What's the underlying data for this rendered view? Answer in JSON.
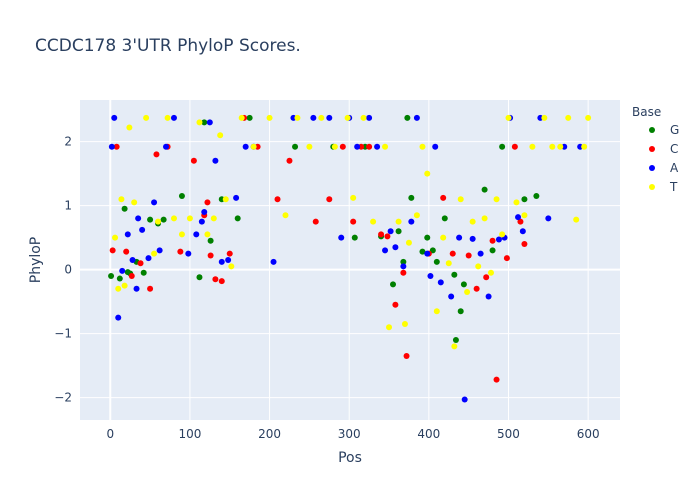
{
  "chart_data": {
    "type": "scatter",
    "title": "CCDC178 3'UTR PhyloP Scores.",
    "xlabel": "Pos",
    "ylabel": "PhyloP",
    "xlim": [
      -38,
      640
    ],
    "ylim": [
      -2.35,
      2.65
    ],
    "x_ticks": [
      0,
      100,
      200,
      300,
      400,
      500,
      600
    ],
    "y_ticks": [
      -2,
      -1,
      0,
      1,
      2
    ],
    "grid": true,
    "legend_title": "Base",
    "legend_position": "right",
    "series": [
      {
        "name": "G",
        "color": "#008000",
        "x": [
          1,
          12,
          18,
          22,
          25,
          33,
          42,
          50,
          60,
          67,
          90,
          112,
          118,
          126,
          140,
          160,
          175,
          232,
          280,
          307,
          320,
          340,
          355,
          362,
          368,
          373,
          378,
          392,
          398,
          405,
          410,
          420,
          432,
          434,
          440,
          444,
          470,
          480,
          492,
          520,
          535
        ],
        "y": [
          -0.1,
          -0.14,
          0.95,
          -0.04,
          -0.06,
          0.12,
          -0.05,
          0.78,
          0.72,
          0.78,
          1.15,
          -0.12,
          2.3,
          0.45,
          1.1,
          0.8,
          2.37,
          1.92,
          1.92,
          0.5,
          1.92,
          0.52,
          -0.23,
          0.6,
          0.12,
          2.37,
          1.12,
          0.28,
          0.5,
          0.3,
          0.12,
          0.8,
          -0.08,
          -1.1,
          -0.65,
          -0.23,
          1.25,
          0.3,
          1.92,
          1.1,
          1.15
        ]
      },
      {
        "name": "C",
        "color": "#ff0000",
        "x": [
          3,
          8,
          20,
          27,
          38,
          50,
          58,
          72,
          88,
          105,
          118,
          122,
          126,
          132,
          140,
          150,
          168,
          185,
          210,
          225,
          258,
          275,
          292,
          305,
          315,
          325,
          340,
          348,
          358,
          368,
          372,
          400,
          418,
          430,
          450,
          460,
          472,
          480,
          485,
          498,
          508,
          515,
          520
        ],
        "y": [
          0.3,
          1.92,
          0.28,
          -0.1,
          0.1,
          -0.3,
          1.8,
          1.92,
          0.28,
          1.7,
          0.85,
          1.05,
          0.22,
          -0.15,
          -0.18,
          0.25,
          2.37,
          1.92,
          1.1,
          1.7,
          0.75,
          1.1,
          1.92,
          0.75,
          1.92,
          1.92,
          0.55,
          0.52,
          -0.55,
          -0.05,
          -1.35,
          0.25,
          1.12,
          0.25,
          0.22,
          -0.3,
          -0.12,
          0.45,
          -1.72,
          0.18,
          1.92,
          0.75,
          0.4
        ]
      },
      {
        "name": "A",
        "color": "#0000ff",
        "x": [
          2,
          5,
          10,
          15,
          22,
          28,
          33,
          35,
          40,
          48,
          55,
          62,
          70,
          80,
          98,
          108,
          115,
          118,
          125,
          132,
          140,
          148,
          158,
          170,
          180,
          205,
          230,
          255,
          275,
          290,
          300,
          310,
          325,
          335,
          345,
          352,
          358,
          368,
          378,
          385,
          398,
          402,
          408,
          415,
          428,
          438,
          445,
          455,
          465,
          475,
          488,
          495,
          502,
          512,
          518,
          540,
          550,
          570,
          590
        ],
        "y": [
          1.92,
          2.37,
          -0.75,
          -0.02,
          0.55,
          0.15,
          -0.3,
          0.8,
          0.62,
          0.18,
          1.05,
          0.3,
          1.92,
          2.37,
          0.25,
          0.55,
          0.75,
          0.9,
          2.3,
          1.7,
          0.12,
          0.15,
          1.12,
          1.92,
          1.92,
          0.12,
          2.37,
          2.37,
          2.37,
          0.5,
          2.37,
          1.92,
          2.37,
          1.92,
          0.3,
          0.6,
          0.35,
          0.05,
          0.75,
          2.37,
          0.25,
          -0.1,
          1.92,
          -0.2,
          -0.42,
          0.5,
          -2.03,
          0.48,
          0.25,
          -0.42,
          0.47,
          0.5,
          2.37,
          0.82,
          0.6,
          2.37,
          0.8,
          1.92,
          1.92
        ]
      },
      {
        "name": "T",
        "color": "#ffff00",
        "x": [
          6,
          10,
          14,
          18,
          24,
          30,
          45,
          55,
          60,
          72,
          80,
          90,
          100,
          112,
          122,
          130,
          138,
          145,
          152,
          165,
          180,
          200,
          220,
          235,
          250,
          265,
          282,
          298,
          305,
          318,
          330,
          345,
          350,
          362,
          370,
          375,
          385,
          392,
          398,
          410,
          418,
          425,
          432,
          440,
          448,
          455,
          462,
          470,
          478,
          485,
          492,
          500,
          510,
          520,
          530,
          545,
          555,
          565,
          575,
          585,
          595,
          600
        ],
        "y": [
          0.5,
          -0.3,
          1.1,
          -0.25,
          2.22,
          1.05,
          2.37,
          0.25,
          0.75,
          2.37,
          0.8,
          0.55,
          0.8,
          2.3,
          0.55,
          0.8,
          2.1,
          1.1,
          0.05,
          2.37,
          1.92,
          2.37,
          0.85,
          2.37,
          1.92,
          2.37,
          1.92,
          2.37,
          1.12,
          2.37,
          0.75,
          1.92,
          -0.9,
          0.75,
          -0.85,
          0.42,
          0.85,
          1.92,
          1.5,
          -0.65,
          0.5,
          0.1,
          -1.2,
          1.1,
          -0.35,
          0.75,
          0.05,
          0.8,
          -0.05,
          1.1,
          0.55,
          2.37,
          1.05,
          0.85,
          1.92,
          2.37,
          1.92,
          1.92,
          2.37,
          0.78,
          1.92,
          2.37
        ]
      }
    ]
  }
}
